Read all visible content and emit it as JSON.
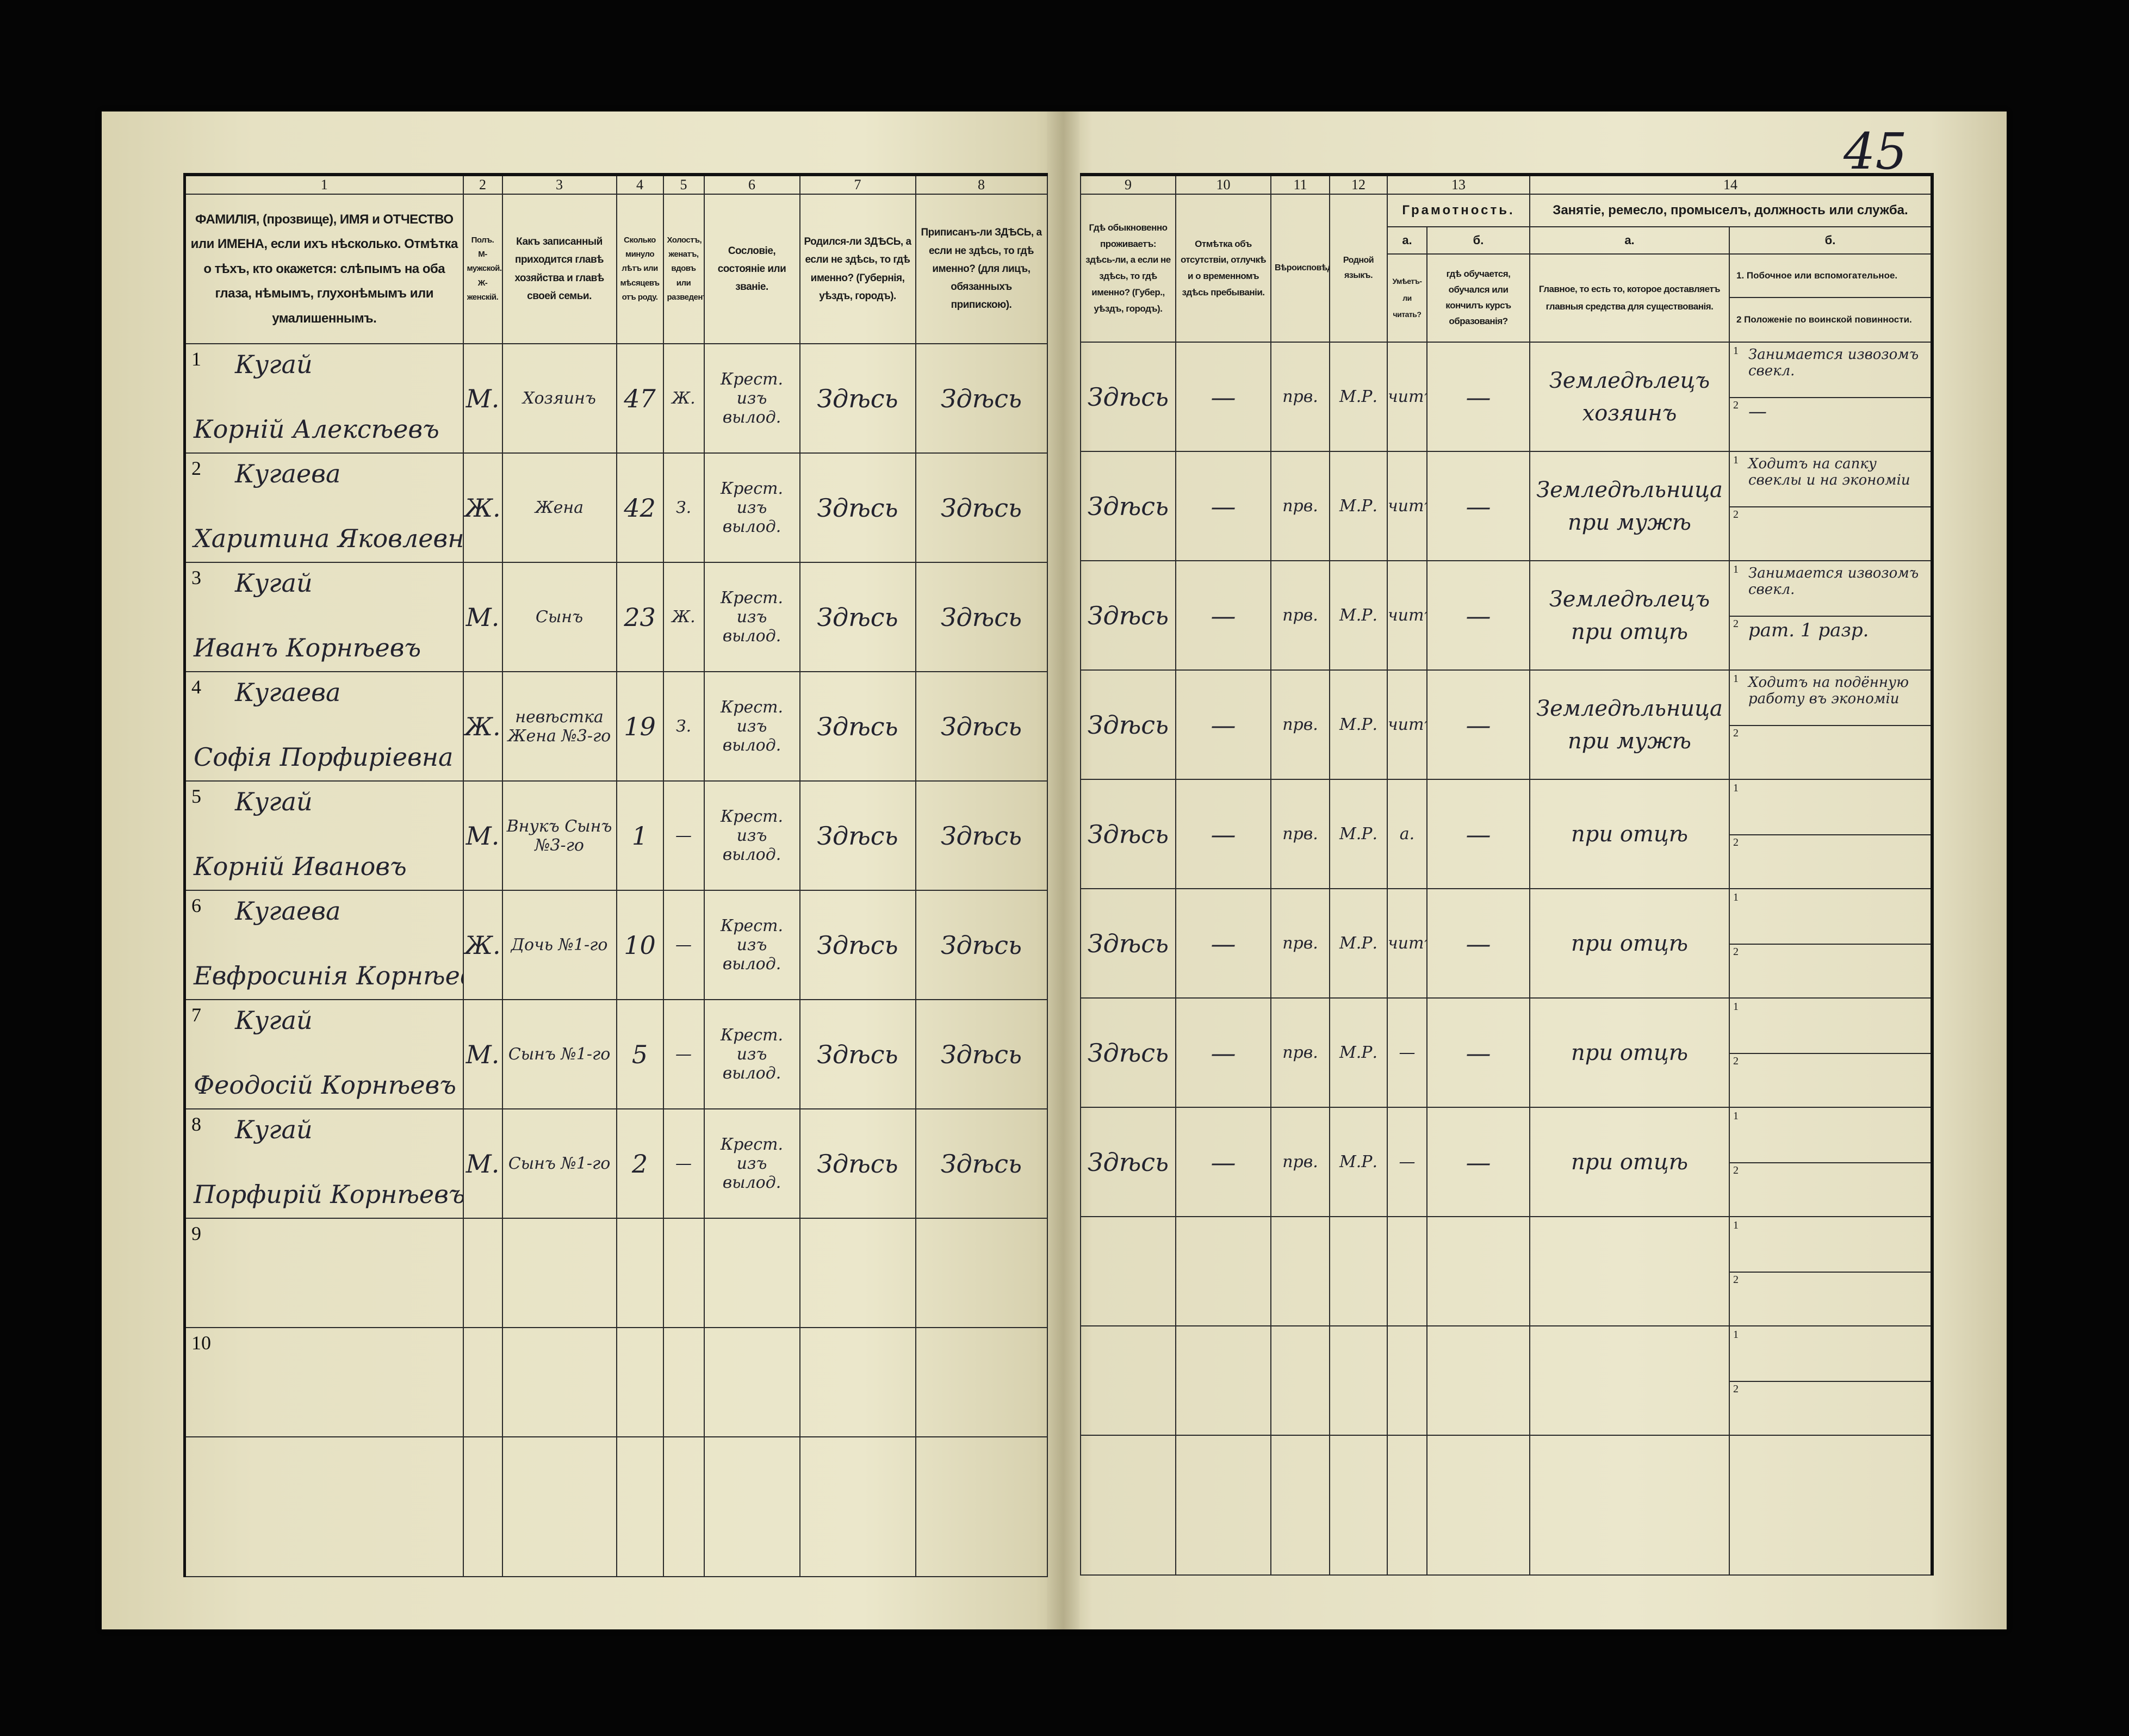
{
  "page_number": "45",
  "header": {
    "col_numbers": [
      "1",
      "2",
      "3",
      "4",
      "5",
      "6",
      "7",
      "8",
      "9",
      "10",
      "11",
      "12",
      "13",
      "14"
    ],
    "c1": "ФАМИЛІЯ, (прозвище), ИМЯ и ОТЧЕСТВО или ИМЕНА, если ихъ нѣсколько. Отмѣтка о тѣхъ, кто окажется: слѣпымъ на оба глаза, нѣмымъ, глухонѣмымъ или умалишеннымъ.",
    "c2": "Полъ. М-мужской. Ж-женскій.",
    "c3": "Какъ записанный приходится главѣ хозяйства и главѣ своей семьи.",
    "c4": "Сколько минуло лѣтъ или мѣсяцевъ отъ роду.",
    "c5": "Холостъ, женатъ, вдовъ или разведенъ.",
    "c6": "Сословіе, состояніе или званіе.",
    "c7": "Родился-ли ЗДѢСЬ, а если не здѣсь, то гдѣ именно? (Губернія, уѣздъ, городъ).",
    "c8": "Приписанъ-ли ЗДѢСЬ, а если не здѣсь, то гдѣ именно? (для лицъ, обязанныхъ припискою).",
    "c9": "Гдѣ обыкновенно проживаетъ: здѣсь-ли, а если не здѣсь, то гдѣ именно? (Губер., уѣздъ, городъ).",
    "c10": "Отмѣтка объ отсутствіи, отлучкѣ и о временномъ здѣсь пребываніи.",
    "c11": "Вѣроисповѣданіе.",
    "c12": "Родной языкъ.",
    "c13_title": "Грамотность.",
    "c13a_label": "а.",
    "c13a": "Умѣетъ-ли читать?",
    "c13b_label": "б.",
    "c13b": "гдѣ обучается, обучался или кончилъ курсъ образованія?",
    "c14_title": "Занятіе, ремесло, промыселъ, должность или служба.",
    "c14a_label": "а.",
    "c14a": "Главное, то есть то, которое доставляетъ главныя средства для существованія.",
    "c14b_label": "б.",
    "c14b1": "1. Побочное или вспомогательное.",
    "c14b2": "2 Положеніе по воинской повинности."
  },
  "sub_labels": [
    "1",
    "2"
  ],
  "rows": [
    {
      "num": "1",
      "surname": "Кугай",
      "name": "Корній Алексѣевъ",
      "sex": "М.",
      "relation": "Хозяинъ",
      "age": "47",
      "marital": "Ж.",
      "estate": "Крест. изъ вылод.",
      "born": "Здѣсь",
      "registered": "Здѣсь",
      "residence": "Здѣсь",
      "absence": "—",
      "religion": "прв.",
      "language": "М.Р.",
      "can_read": "читъ",
      "education": "—",
      "occupation": "Земледѣлецъ хозяинъ",
      "side": "Занимается извозомъ свекл.",
      "military": "—"
    },
    {
      "num": "2",
      "surname": "Кугаева",
      "name": "Харитина Яковлевна",
      "sex": "Ж.",
      "relation": "Жена",
      "age": "42",
      "marital": "З.",
      "estate": "Крест. изъ вылод.",
      "born": "Здѣсь",
      "registered": "Здѣсь",
      "residence": "Здѣсь",
      "absence": "—",
      "religion": "прв.",
      "language": "М.Р.",
      "can_read": "читъ",
      "education": "—",
      "occupation": "Земледѣльница при мужѣ",
      "side": "Ходитъ на сапку свеклы и на экономіи",
      "military": ""
    },
    {
      "num": "3",
      "surname": "Кугай",
      "name": "Иванъ Корнѣевъ",
      "sex": "М.",
      "relation": "Сынъ",
      "age": "23",
      "marital": "Ж.",
      "estate": "Крест. изъ вылод.",
      "born": "Здѣсь",
      "registered": "Здѣсь",
      "residence": "Здѣсь",
      "absence": "—",
      "religion": "прв.",
      "language": "М.Р.",
      "can_read": "читъ",
      "education": "—",
      "occupation": "Земледѣлецъ при отцѣ",
      "side": "Занимается извозомъ свекл.",
      "military": "рат. 1 разр."
    },
    {
      "num": "4",
      "surname": "Кугаева",
      "name": "Софія Порфиріевна",
      "sex": "Ж.",
      "relation": "невѣстка Жена №3-го",
      "age": "19",
      "marital": "З.",
      "estate": "Крест. изъ вылод.",
      "born": "Здѣсь",
      "registered": "Здѣсь",
      "residence": "Здѣсь",
      "absence": "—",
      "religion": "прв.",
      "language": "М.Р.",
      "can_read": "читъ",
      "education": "—",
      "occupation": "Земледѣльница при мужѣ",
      "side": "Ходитъ на подённую работу въ экономіи",
      "military": ""
    },
    {
      "num": "5",
      "surname": "Кугай",
      "name": "Корній Ивановъ",
      "sex": "М.",
      "relation": "Внукъ Сынъ №3-го",
      "age": "1",
      "marital": "—",
      "estate": "Крест. изъ вылод.",
      "born": "Здѣсь",
      "registered": "Здѣсь",
      "residence": "Здѣсь",
      "absence": "—",
      "religion": "прв.",
      "language": "М.Р.",
      "can_read": "а.",
      "education": "—",
      "occupation": "при отцѣ",
      "side": "",
      "military": ""
    },
    {
      "num": "6",
      "surname": "Кугаева",
      "name": "Евфросинія Корнѣевна",
      "sex": "Ж.",
      "relation": "Дочь №1-го",
      "age": "10",
      "marital": "—",
      "estate": "Крест. изъ вылод.",
      "born": "Здѣсь",
      "registered": "Здѣсь",
      "residence": "Здѣсь",
      "absence": "—",
      "religion": "прв.",
      "language": "М.Р.",
      "can_read": "читъ",
      "education": "—",
      "occupation": "при отцѣ",
      "side": "",
      "military": ""
    },
    {
      "num": "7",
      "surname": "Кугай",
      "name": "Феодосій Корнѣевъ",
      "sex": "М.",
      "relation": "Сынъ №1-го",
      "age": "5",
      "marital": "—",
      "estate": "Крест. изъ вылод.",
      "born": "Здѣсь",
      "registered": "Здѣсь",
      "residence": "Здѣсь",
      "absence": "—",
      "religion": "прв.",
      "language": "М.Р.",
      "can_read": "—",
      "education": "—",
      "occupation": "при отцѣ",
      "side": "",
      "military": ""
    },
    {
      "num": "8",
      "surname": "Кугай",
      "name": "Порфирій Корнѣевъ",
      "sex": "М.",
      "relation": "Сынъ №1-го",
      "age": "2",
      "marital": "—",
      "estate": "Крест. изъ вылод.",
      "born": "Здѣсь",
      "registered": "Здѣсь",
      "residence": "Здѣсь",
      "absence": "—",
      "religion": "прв.",
      "language": "М.Р.",
      "can_read": "—",
      "education": "—",
      "occupation": "при отцѣ",
      "side": "",
      "military": ""
    },
    {
      "num": "9"
    },
    {
      "num": "10"
    }
  ]
}
